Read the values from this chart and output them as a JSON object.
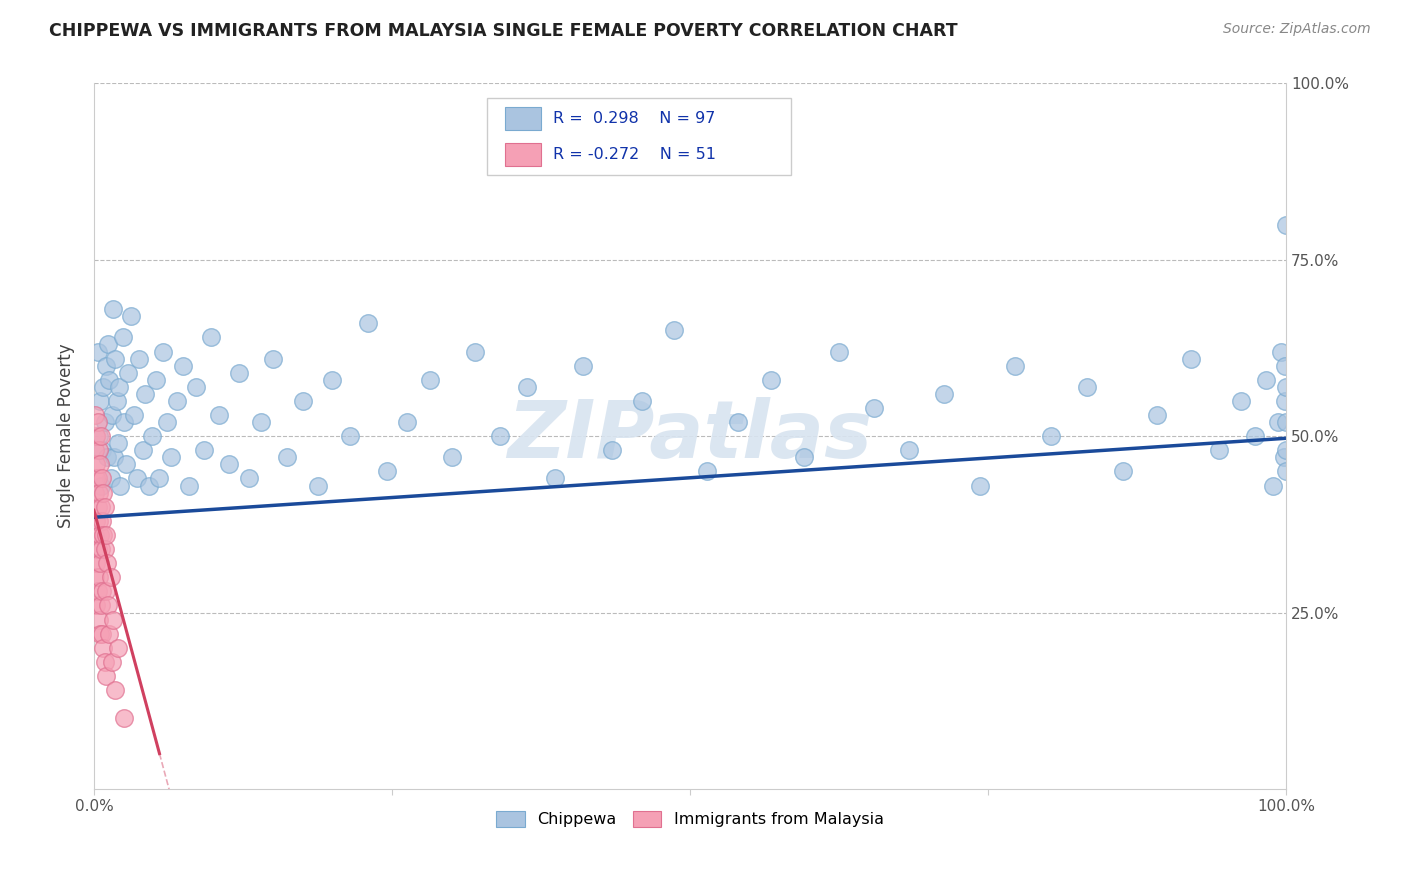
{
  "title": "CHIPPEWA VS IMMIGRANTS FROM MALAYSIA SINGLE FEMALE POVERTY CORRELATION CHART",
  "source": "Source: ZipAtlas.com",
  "ylabel": "Single Female Poverty",
  "r_blue": 0.298,
  "n_blue": 97,
  "r_pink": -0.272,
  "n_pink": 51,
  "blue_color": "#aac4e0",
  "blue_edge_color": "#7aaad0",
  "blue_line_color": "#1a4a9a",
  "pink_color": "#f5a0b5",
  "pink_edge_color": "#e07090",
  "pink_line_color": "#d04060",
  "watermark_color": "#d8e4f0",
  "grid_color": "#bbbbbb",
  "title_color": "#222222",
  "source_color": "#888888",
  "axis_label_color": "#555555",
  "legend_text_color": "#1133aa",
  "watermark": "ZIPatlas",
  "xlim": [
    0.0,
    1.0
  ],
  "ylim": [
    0.0,
    1.0
  ],
  "blue_line_x0": 0.0,
  "blue_line_y0": 0.385,
  "blue_line_x1": 1.0,
  "blue_line_y1": 0.497,
  "pink_line_x0": 0.0,
  "pink_line_y0": 0.395,
  "pink_line_x1": 0.055,
  "pink_line_y1": 0.05,
  "blue_pts_x": [
    0.003,
    0.004,
    0.005,
    0.006,
    0.007,
    0.008,
    0.009,
    0.01,
    0.011,
    0.012,
    0.013,
    0.014,
    0.015,
    0.016,
    0.017,
    0.018,
    0.019,
    0.02,
    0.021,
    0.022,
    0.024,
    0.025,
    0.027,
    0.029,
    0.031,
    0.034,
    0.036,
    0.038,
    0.041,
    0.043,
    0.046,
    0.049,
    0.052,
    0.055,
    0.058,
    0.061,
    0.065,
    0.07,
    0.075,
    0.08,
    0.086,
    0.092,
    0.098,
    0.105,
    0.113,
    0.122,
    0.13,
    0.14,
    0.15,
    0.162,
    0.175,
    0.188,
    0.2,
    0.215,
    0.23,
    0.246,
    0.263,
    0.282,
    0.3,
    0.32,
    0.341,
    0.363,
    0.387,
    0.41,
    0.435,
    0.46,
    0.487,
    0.514,
    0.54,
    0.568,
    0.596,
    0.625,
    0.654,
    0.684,
    0.713,
    0.743,
    0.773,
    0.803,
    0.833,
    0.863,
    0.892,
    0.92,
    0.944,
    0.962,
    0.974,
    0.983,
    0.989,
    0.993,
    0.996,
    0.998,
    0.999,
    0.999,
    1.0,
    1.0,
    1.0,
    1.0,
    1.0
  ],
  "blue_pts_y": [
    0.62,
    0.5,
    0.55,
    0.43,
    0.48,
    0.57,
    0.52,
    0.6,
    0.47,
    0.63,
    0.58,
    0.44,
    0.53,
    0.68,
    0.47,
    0.61,
    0.55,
    0.49,
    0.57,
    0.43,
    0.64,
    0.52,
    0.46,
    0.59,
    0.67,
    0.53,
    0.44,
    0.61,
    0.48,
    0.56,
    0.43,
    0.5,
    0.58,
    0.44,
    0.62,
    0.52,
    0.47,
    0.55,
    0.6,
    0.43,
    0.57,
    0.48,
    0.64,
    0.53,
    0.46,
    0.59,
    0.44,
    0.52,
    0.61,
    0.47,
    0.55,
    0.43,
    0.58,
    0.5,
    0.66,
    0.45,
    0.52,
    0.58,
    0.47,
    0.62,
    0.5,
    0.57,
    0.44,
    0.6,
    0.48,
    0.55,
    0.65,
    0.45,
    0.52,
    0.58,
    0.47,
    0.62,
    0.54,
    0.48,
    0.56,
    0.43,
    0.6,
    0.5,
    0.57,
    0.45,
    0.53,
    0.61,
    0.48,
    0.55,
    0.5,
    0.58,
    0.43,
    0.52,
    0.62,
    0.47,
    0.55,
    0.6,
    0.48,
    0.52,
    0.57,
    0.45,
    0.8
  ],
  "pink_pts_x": [
    0.001,
    0.001,
    0.001,
    0.001,
    0.001,
    0.002,
    0.002,
    0.002,
    0.002,
    0.002,
    0.002,
    0.003,
    0.003,
    0.003,
    0.003,
    0.003,
    0.004,
    0.004,
    0.004,
    0.004,
    0.004,
    0.005,
    0.005,
    0.005,
    0.005,
    0.006,
    0.006,
    0.006,
    0.006,
    0.007,
    0.007,
    0.007,
    0.007,
    0.008,
    0.008,
    0.008,
    0.009,
    0.009,
    0.009,
    0.01,
    0.01,
    0.01,
    0.011,
    0.012,
    0.013,
    0.014,
    0.015,
    0.016,
    0.018,
    0.02,
    0.025
  ],
  "pink_pts_y": [
    0.42,
    0.36,
    0.48,
    0.3,
    0.53,
    0.38,
    0.44,
    0.26,
    0.5,
    0.32,
    0.46,
    0.4,
    0.28,
    0.52,
    0.34,
    0.44,
    0.38,
    0.24,
    0.48,
    0.3,
    0.42,
    0.36,
    0.22,
    0.46,
    0.32,
    0.4,
    0.26,
    0.5,
    0.34,
    0.38,
    0.22,
    0.44,
    0.28,
    0.36,
    0.2,
    0.42,
    0.34,
    0.18,
    0.4,
    0.28,
    0.36,
    0.16,
    0.32,
    0.26,
    0.22,
    0.3,
    0.18,
    0.24,
    0.14,
    0.2,
    0.1
  ]
}
